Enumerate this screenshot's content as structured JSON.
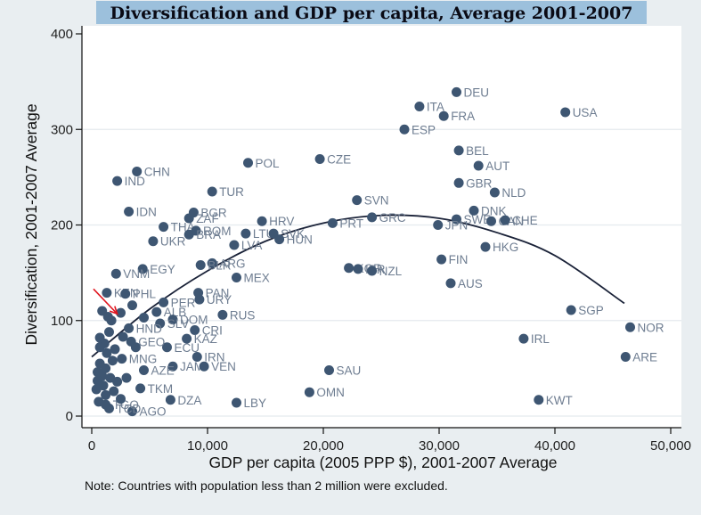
{
  "chart_data": {
    "type": "scatter",
    "title": "Diversification and GDP per capita, Average 2001-2007",
    "xlabel": "GDP per capita (2005 PPP $), 2001-2007 Average",
    "ylabel": "Diversification, 2001-2007 Average",
    "note": "Note: Countries with population less than 2 million were excluded.",
    "xlim": [
      0,
      50000
    ],
    "ylim": [
      0,
      400
    ],
    "xticks": [
      0,
      10000,
      20000,
      30000,
      40000,
      50000
    ],
    "xtick_labels": [
      "0",
      "10,000",
      "20,000",
      "30,000",
      "40,000",
      "50,000"
    ],
    "yticks": [
      0,
      100,
      200,
      300,
      400
    ],
    "ytick_labels": [
      "0",
      "100",
      "200",
      "300",
      "400"
    ],
    "grid": "horizontal",
    "colors": {
      "marker": "#3e5672",
      "label": "#6e7d91",
      "fit_line": "#1a2238",
      "title_bg": "#9cc0dc",
      "arrow": "#e0141e",
      "background": "#e9eef1"
    },
    "fit_line": {
      "type": "quadratic",
      "points": [
        [
          0,
          62
        ],
        [
          5000,
          112
        ],
        [
          10000,
          152
        ],
        [
          15000,
          183
        ],
        [
          20000,
          202
        ],
        [
          25000,
          210
        ],
        [
          30000,
          207
        ],
        [
          35000,
          192
        ],
        [
          40000,
          168
        ],
        [
          46000,
          118
        ]
      ]
    },
    "annotation": {
      "type": "arrow",
      "color": "#e0141e",
      "from": [
        150,
        133
      ],
      "to": [
        2200,
        107
      ]
    },
    "points": [
      {
        "label": "DEU",
        "x": 31500,
        "y": 339
      },
      {
        "label": "ITA",
        "x": 28300,
        "y": 324
      },
      {
        "label": "FRA",
        "x": 30400,
        "y": 314
      },
      {
        "label": "ESP",
        "x": 27000,
        "y": 300
      },
      {
        "label": "USA",
        "x": 40900,
        "y": 318
      },
      {
        "label": "BEL",
        "x": 31700,
        "y": 278
      },
      {
        "label": "AUT",
        "x": 33400,
        "y": 262
      },
      {
        "label": "GBR",
        "x": 31700,
        "y": 244
      },
      {
        "label": "NLD",
        "x": 34800,
        "y": 234
      },
      {
        "label": "SVN",
        "x": 22900,
        "y": 226
      },
      {
        "label": "DNK",
        "x": 33000,
        "y": 215
      },
      {
        "label": "SWE",
        "x": 31500,
        "y": 206
      },
      {
        "label": "CAN",
        "x": 34500,
        "y": 204
      },
      {
        "label": "CHE",
        "x": 35700,
        "y": 205
      },
      {
        "label": "JPN",
        "x": 29900,
        "y": 200
      },
      {
        "label": "GRC",
        "x": 24200,
        "y": 208
      },
      {
        "label": "PRT",
        "x": 20800,
        "y": 202
      },
      {
        "label": "HKG",
        "x": 34000,
        "y": 177
      },
      {
        "label": "FIN",
        "x": 30200,
        "y": 164
      },
      {
        "label": "AUS",
        "x": 31000,
        "y": 139
      },
      {
        "label": "KOR",
        "x": 22200,
        "y": 155
      },
      {
        "label": "ISR",
        "x": 23000,
        "y": 154
      },
      {
        "label": "NZL",
        "x": 24200,
        "y": 152
      },
      {
        "label": "SGP",
        "x": 41400,
        "y": 111
      },
      {
        "label": "NOR",
        "x": 46500,
        "y": 93
      },
      {
        "label": "IRL",
        "x": 37300,
        "y": 81
      },
      {
        "label": "ARE",
        "x": 46100,
        "y": 62
      },
      {
        "label": "KWT",
        "x": 38600,
        "y": 17
      },
      {
        "label": "SAU",
        "x": 20500,
        "y": 48
      },
      {
        "label": "OMN",
        "x": 18800,
        "y": 25
      },
      {
        "label": "LBY",
        "x": 12500,
        "y": 14
      },
      {
        "label": "POL",
        "x": 13500,
        "y": 265
      },
      {
        "label": "CZE",
        "x": 19700,
        "y": 269
      },
      {
        "label": "TUR",
        "x": 10400,
        "y": 235
      },
      {
        "label": "CHN",
        "x": 3900,
        "y": 256
      },
      {
        "label": "IND",
        "x": 2200,
        "y": 246
      },
      {
        "label": "IDN",
        "x": 3200,
        "y": 214
      },
      {
        "label": "BGR",
        "x": 8800,
        "y": 213
      },
      {
        "label": "ZAF",
        "x": 8400,
        "y": 207
      },
      {
        "label": "THA",
        "x": 6200,
        "y": 198
      },
      {
        "label": "ROM",
        "x": 9000,
        "y": 194
      },
      {
        "label": "BRA",
        "x": 8400,
        "y": 190
      },
      {
        "label": "UKR",
        "x": 5300,
        "y": 183
      },
      {
        "label": "HRV",
        "x": 14700,
        "y": 204
      },
      {
        "label": "LTU",
        "x": 13300,
        "y": 191
      },
      {
        "label": "SVK",
        "x": 15700,
        "y": 191
      },
      {
        "label": "HUN",
        "x": 16200,
        "y": 185
      },
      {
        "label": "LVA",
        "x": 12300,
        "y": 179
      },
      {
        "label": "ARG",
        "x": 10400,
        "y": 160
      },
      {
        "label": "BLR",
        "x": 9400,
        "y": 158
      },
      {
        "label": "EGY",
        "x": 4400,
        "y": 154
      },
      {
        "label": "VNM",
        "x": 2100,
        "y": 149
      },
      {
        "label": "MEX",
        "x": 12500,
        "y": 145
      },
      {
        "label": "RUS",
        "x": 11300,
        "y": 106
      },
      {
        "label": "URY",
        "x": 9300,
        "y": 122
      },
      {
        "label": "PAN",
        "x": 9200,
        "y": 129
      },
      {
        "label": "PER",
        "x": 6200,
        "y": 119
      },
      {
        "label": "ALB",
        "x": 5600,
        "y": 109
      },
      {
        "label": "DOM",
        "x": 7000,
        "y": 101
      },
      {
        "label": "SLV",
        "x": 5900,
        "y": 97
      },
      {
        "label": "HND",
        "x": 3200,
        "y": 92
      },
      {
        "label": "CRI",
        "x": 8900,
        "y": 90
      },
      {
        "label": "KAZ",
        "x": 8200,
        "y": 81
      },
      {
        "label": "ECU",
        "x": 6500,
        "y": 72
      },
      {
        "label": "IRN",
        "x": 9100,
        "y": 62
      },
      {
        "label": "JAM",
        "x": 7000,
        "y": 52
      },
      {
        "label": "VEN",
        "x": 9700,
        "y": 52
      },
      {
        "label": "AZE",
        "x": 4500,
        "y": 48
      },
      {
        "label": "TKM",
        "x": 4200,
        "y": 29
      },
      {
        "label": "DZA",
        "x": 6800,
        "y": 17
      },
      {
        "label": "AGO",
        "x": 3500,
        "y": 5
      },
      {
        "label": "KEN",
        "x": 1300,
        "y": 129
      },
      {
        "label": "PHL",
        "x": 2900,
        "y": 128
      },
      {
        "label": "GEO",
        "x": 3400,
        "y": 78
      },
      {
        "label": "MNG",
        "x": 2600,
        "y": 60
      },
      {
        "label": "TGO",
        "x": 1200,
        "y": 12
      },
      {
        "label": "TCD",
        "x": 1500,
        "y": 8
      },
      {
        "label": "",
        "x": 900,
        "y": 110
      },
      {
        "label": "",
        "x": 1400,
        "y": 104
      },
      {
        "label": "",
        "x": 1700,
        "y": 100
      },
      {
        "label": "",
        "x": 2500,
        "y": 108
      },
      {
        "label": "",
        "x": 3500,
        "y": 116
      },
      {
        "label": "",
        "x": 4500,
        "y": 103
      },
      {
        "label": "",
        "x": 700,
        "y": 82
      },
      {
        "label": "",
        "x": 1100,
        "y": 76
      },
      {
        "label": "",
        "x": 700,
        "y": 72
      },
      {
        "label": "",
        "x": 1300,
        "y": 66
      },
      {
        "label": "",
        "x": 1800,
        "y": 58
      },
      {
        "label": "",
        "x": 700,
        "y": 55
      },
      {
        "label": "",
        "x": 1200,
        "y": 50
      },
      {
        "label": "",
        "x": 500,
        "y": 46
      },
      {
        "label": "",
        "x": 900,
        "y": 42
      },
      {
        "label": "",
        "x": 1600,
        "y": 40
      },
      {
        "label": "",
        "x": 2200,
        "y": 36
      },
      {
        "label": "",
        "x": 500,
        "y": 37
      },
      {
        "label": "",
        "x": 1000,
        "y": 32
      },
      {
        "label": "",
        "x": 400,
        "y": 28
      },
      {
        "label": "",
        "x": 1900,
        "y": 26
      },
      {
        "label": "",
        "x": 1200,
        "y": 22
      },
      {
        "label": "",
        "x": 600,
        "y": 15
      },
      {
        "label": "",
        "x": 2500,
        "y": 18
      },
      {
        "label": "",
        "x": 3000,
        "y": 40
      },
      {
        "label": "",
        "x": 2000,
        "y": 70
      },
      {
        "label": "",
        "x": 1500,
        "y": 88
      },
      {
        "label": "",
        "x": 2700,
        "y": 83
      },
      {
        "label": "",
        "x": 3800,
        "y": 72
      }
    ]
  }
}
